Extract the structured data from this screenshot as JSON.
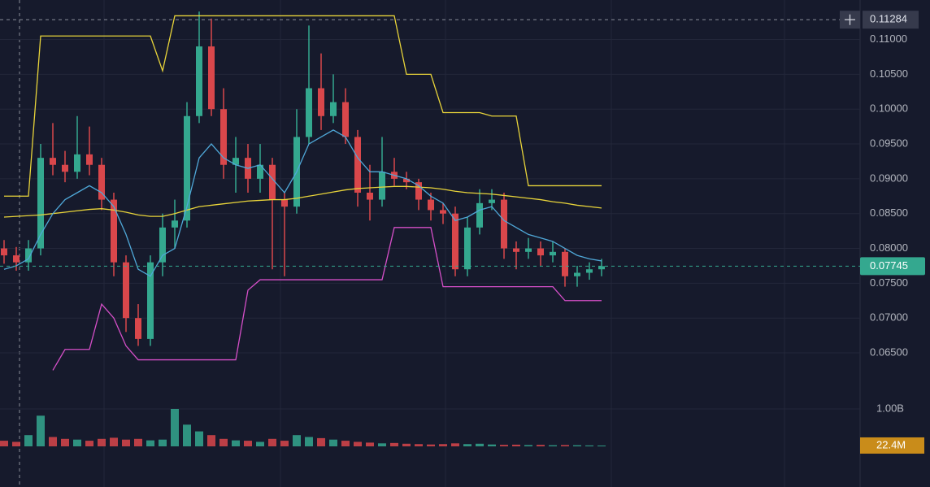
{
  "chart_data": {
    "type": "candlestick",
    "open": [
      0.08,
      0.079,
      0.078,
      0.08,
      0.093,
      0.092,
      0.091,
      0.0935,
      0.092,
      0.087,
      0.078,
      0.07,
      0.067,
      0.078,
      0.083,
      0.084,
      0.099,
      0.109,
      0.1,
      0.092,
      0.093,
      0.09,
      0.092,
      0.087,
      0.086,
      0.096,
      0.103,
      0.099,
      0.101,
      0.096,
      0.088,
      0.087,
      0.091,
      0.09,
      0.0895,
      0.087,
      0.0855,
      0.085,
      0.077,
      0.083,
      0.0865,
      0.087,
      0.08,
      0.0795,
      0.08,
      0.079,
      0.0795,
      0.076,
      0.0765,
      0.077
    ],
    "high": [
      0.0812,
      0.0802,
      0.0812,
      0.095,
      0.098,
      0.094,
      0.099,
      0.0975,
      0.093,
      0.088,
      0.079,
      0.072,
      0.079,
      0.085,
      0.087,
      0.101,
      0.114,
      0.113,
      0.103,
      0.096,
      0.095,
      0.095,
      0.093,
      0.088,
      0.1,
      0.112,
      0.108,
      0.105,
      0.103,
      0.097,
      0.092,
      0.096,
      0.093,
      0.091,
      0.09,
      0.088,
      0.0865,
      0.086,
      0.0845,
      0.0885,
      0.0885,
      0.088,
      0.081,
      0.0815,
      0.081,
      0.081,
      0.08,
      0.0775,
      0.078,
      0.0785
    ],
    "low": [
      0.0778,
      0.0768,
      0.0768,
      0.079,
      0.0905,
      0.0895,
      0.09,
      0.0905,
      0.0855,
      0.076,
      0.068,
      0.066,
      0.066,
      0.076,
      0.08,
      0.083,
      0.098,
      0.099,
      0.09,
      0.088,
      0.088,
      0.088,
      0.077,
      0.076,
      0.085,
      0.095,
      0.097,
      0.098,
      0.095,
      0.086,
      0.084,
      0.086,
      0.089,
      0.0885,
      0.0855,
      0.084,
      0.0835,
      0.076,
      0.076,
      0.082,
      0.0855,
      0.0785,
      0.077,
      0.0785,
      0.0775,
      0.078,
      0.0745,
      0.0745,
      0.0755,
      0.076
    ],
    "close": [
      0.079,
      0.078,
      0.08,
      0.093,
      0.092,
      0.091,
      0.0935,
      0.092,
      0.087,
      0.078,
      0.07,
      0.067,
      0.078,
      0.083,
      0.084,
      0.099,
      0.109,
      0.1,
      0.092,
      0.093,
      0.09,
      0.092,
      0.087,
      0.086,
      0.096,
      0.103,
      0.099,
      0.101,
      0.096,
      0.088,
      0.087,
      0.091,
      0.09,
      0.0895,
      0.087,
      0.0855,
      0.085,
      0.077,
      0.083,
      0.0865,
      0.087,
      0.08,
      0.0795,
      0.08,
      0.079,
      0.0795,
      0.076,
      0.0765,
      0.077,
      0.07745
    ],
    "volume": [
      150000000,
      120000000,
      300000000,
      820000000,
      250000000,
      200000000,
      180000000,
      150000000,
      200000000,
      230000000,
      180000000,
      200000000,
      160000000,
      180000000,
      1000000000,
      580000000,
      400000000,
      300000000,
      200000000,
      160000000,
      150000000,
      120000000,
      200000000,
      150000000,
      300000000,
      250000000,
      220000000,
      180000000,
      150000000,
      120000000,
      100000000,
      80000000,
      90000000,
      70000000,
      60000000,
      50000000,
      60000000,
      80000000,
      60000000,
      70000000,
      50000000,
      40000000,
      45000000,
      35000000,
      40000000,
      30000000,
      35000000,
      30000000,
      25000000,
      22400000
    ],
    "overlays": [
      {
        "color": "#e8d43a",
        "values": [
          0.0875,
          0.0875,
          0.0875,
          0.1105,
          0.1105,
          0.1105,
          0.1105,
          0.1105,
          0.1105,
          0.1105,
          0.1105,
          0.1105,
          0.1105,
          0.1055,
          0.1134,
          0.1134,
          0.1134,
          0.1134,
          0.1134,
          0.1134,
          0.1134,
          0.1134,
          0.1134,
          0.1134,
          0.1134,
          0.1134,
          0.1134,
          0.1134,
          0.1134,
          0.1134,
          0.1134,
          0.1134,
          0.1134,
          0.105,
          0.105,
          0.105,
          0.0995,
          0.0995,
          0.0995,
          0.0995,
          0.099,
          0.099,
          0.099,
          0.089,
          0.089,
          0.089,
          0.089,
          0.089,
          0.089,
          0.089
        ]
      },
      {
        "color": "#d54fc8",
        "values": [
          null,
          null,
          null,
          null,
          0.0625,
          0.0655,
          0.0655,
          0.0655,
          0.072,
          0.07,
          0.066,
          0.064,
          0.064,
          0.064,
          0.064,
          0.064,
          0.064,
          0.064,
          0.064,
          0.064,
          0.074,
          0.0755,
          0.0755,
          0.0755,
          0.0755,
          0.0755,
          0.0755,
          0.0755,
          0.0755,
          0.0755,
          0.0755,
          0.0755,
          0.083,
          0.083,
          0.083,
          0.083,
          0.0745,
          0.0745,
          0.0745,
          0.0745,
          0.0745,
          0.0745,
          0.0745,
          0.0745,
          0.0745,
          0.0745,
          0.0725,
          0.0725,
          0.0725,
          0.0725
        ]
      },
      {
        "color": "#e8d43a",
        "values": [
          0.0845,
          0.0846,
          0.0847,
          0.0848,
          0.085,
          0.0852,
          0.0854,
          0.0856,
          0.0857,
          0.0855,
          0.0852,
          0.0848,
          0.0846,
          0.0846,
          0.085,
          0.0855,
          0.086,
          0.0862,
          0.0864,
          0.0866,
          0.0868,
          0.0869,
          0.087,
          0.087,
          0.0872,
          0.0875,
          0.0878,
          0.0881,
          0.0884,
          0.0886,
          0.0887,
          0.0888,
          0.0889,
          0.0889,
          0.0888,
          0.0887,
          0.0885,
          0.0882,
          0.088,
          0.0879,
          0.0878,
          0.0876,
          0.0874,
          0.0872,
          0.087,
          0.0867,
          0.0865,
          0.0862,
          0.086,
          0.0858
        ]
      },
      {
        "color": "#4fa8d8",
        "values": [
          0.077,
          0.0775,
          0.0785,
          0.082,
          0.085,
          0.087,
          0.088,
          0.089,
          0.088,
          0.086,
          0.082,
          0.077,
          0.076,
          0.079,
          0.08,
          0.086,
          0.093,
          0.095,
          0.093,
          0.092,
          0.0915,
          0.092,
          0.09,
          0.088,
          0.091,
          0.095,
          0.096,
          0.097,
          0.096,
          0.093,
          0.091,
          0.091,
          0.0905,
          0.09,
          0.089,
          0.0875,
          0.0865,
          0.084,
          0.0845,
          0.0855,
          0.086,
          0.084,
          0.083,
          0.082,
          0.0815,
          0.081,
          0.08,
          0.079,
          0.0785,
          0.0782
        ]
      }
    ],
    "up_color": "#34a88f",
    "down_color": "#d9474b",
    "ylim": [
      0.0615,
      0.1145
    ],
    "yticks": [
      {
        "value": 0.065,
        "label": "0.06500"
      },
      {
        "value": 0.07,
        "label": "0.07000"
      },
      {
        "value": 0.075,
        "label": "0.07500"
      },
      {
        "value": 0.08,
        "label": "0.08000"
      },
      {
        "value": 0.085,
        "label": "0.08500"
      },
      {
        "value": 0.09,
        "label": "0.09000"
      },
      {
        "value": 0.095,
        "label": "0.09500"
      },
      {
        "value": 0.1,
        "label": "0.10000"
      },
      {
        "value": 0.105,
        "label": "0.10500"
      },
      {
        "value": 0.11,
        "label": "0.11000"
      }
    ],
    "vlim": [
      0,
      1000000000
    ],
    "vticks": [
      {
        "value": 1000000000,
        "label": "1.00B"
      }
    ],
    "last_price": 0.07745,
    "crosshair_price": 0.11284,
    "last_volume": {
      "value": 22400000,
      "label": "22.4M"
    },
    "grid": true
  }
}
